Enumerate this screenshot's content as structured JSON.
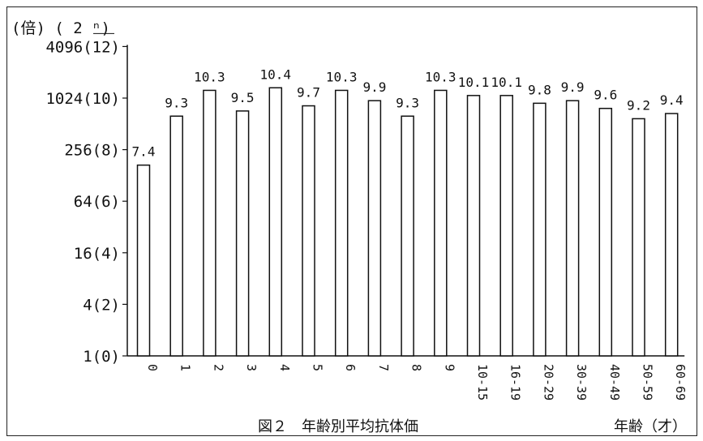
{
  "chart_data": {
    "type": "bar",
    "title": "図２　年齢別平均抗体価",
    "ylabel": "(倍)",
    "ylabel_exponent": "( 2 ⁿ)",
    "xlabel": "年齢（才）",
    "categories": [
      "0",
      "1",
      "2",
      "3",
      "4",
      "5",
      "6",
      "7",
      "8",
      "9",
      "10-15",
      "16-19",
      "20-29",
      "30-39",
      "40-49",
      "50-59",
      "60-69"
    ],
    "values": [
      7.4,
      9.3,
      10.3,
      9.5,
      10.4,
      9.7,
      10.3,
      9.9,
      9.3,
      10.3,
      10.1,
      10.1,
      9.8,
      9.9,
      9.6,
      9.2,
      9.4
    ],
    "data_labels": [
      "7.4",
      "9.3",
      "10.3",
      "9.5",
      "10.4",
      "9.7",
      "10.3",
      "9.9",
      "9.3",
      "10.3",
      "10.1",
      "10.1",
      "9.8",
      "9.9",
      "9.6",
      "9.2",
      "9.4"
    ],
    "ylim": [
      0,
      12
    ],
    "yticks": [
      {
        "value": 0,
        "label": "1(0)"
      },
      {
        "value": 2,
        "label": "4(2)"
      },
      {
        "value": 4,
        "label": "16(4)"
      },
      {
        "value": 6,
        "label": "64(6)"
      },
      {
        "value": 8,
        "label": "256(8)"
      },
      {
        "value": 10,
        "label": "1024(10)"
      },
      {
        "value": 12,
        "label": "4096(12)"
      }
    ],
    "grid": false,
    "legend": "none",
    "bar_fill": "#ffffff",
    "bar_stroke": "#111111"
  }
}
